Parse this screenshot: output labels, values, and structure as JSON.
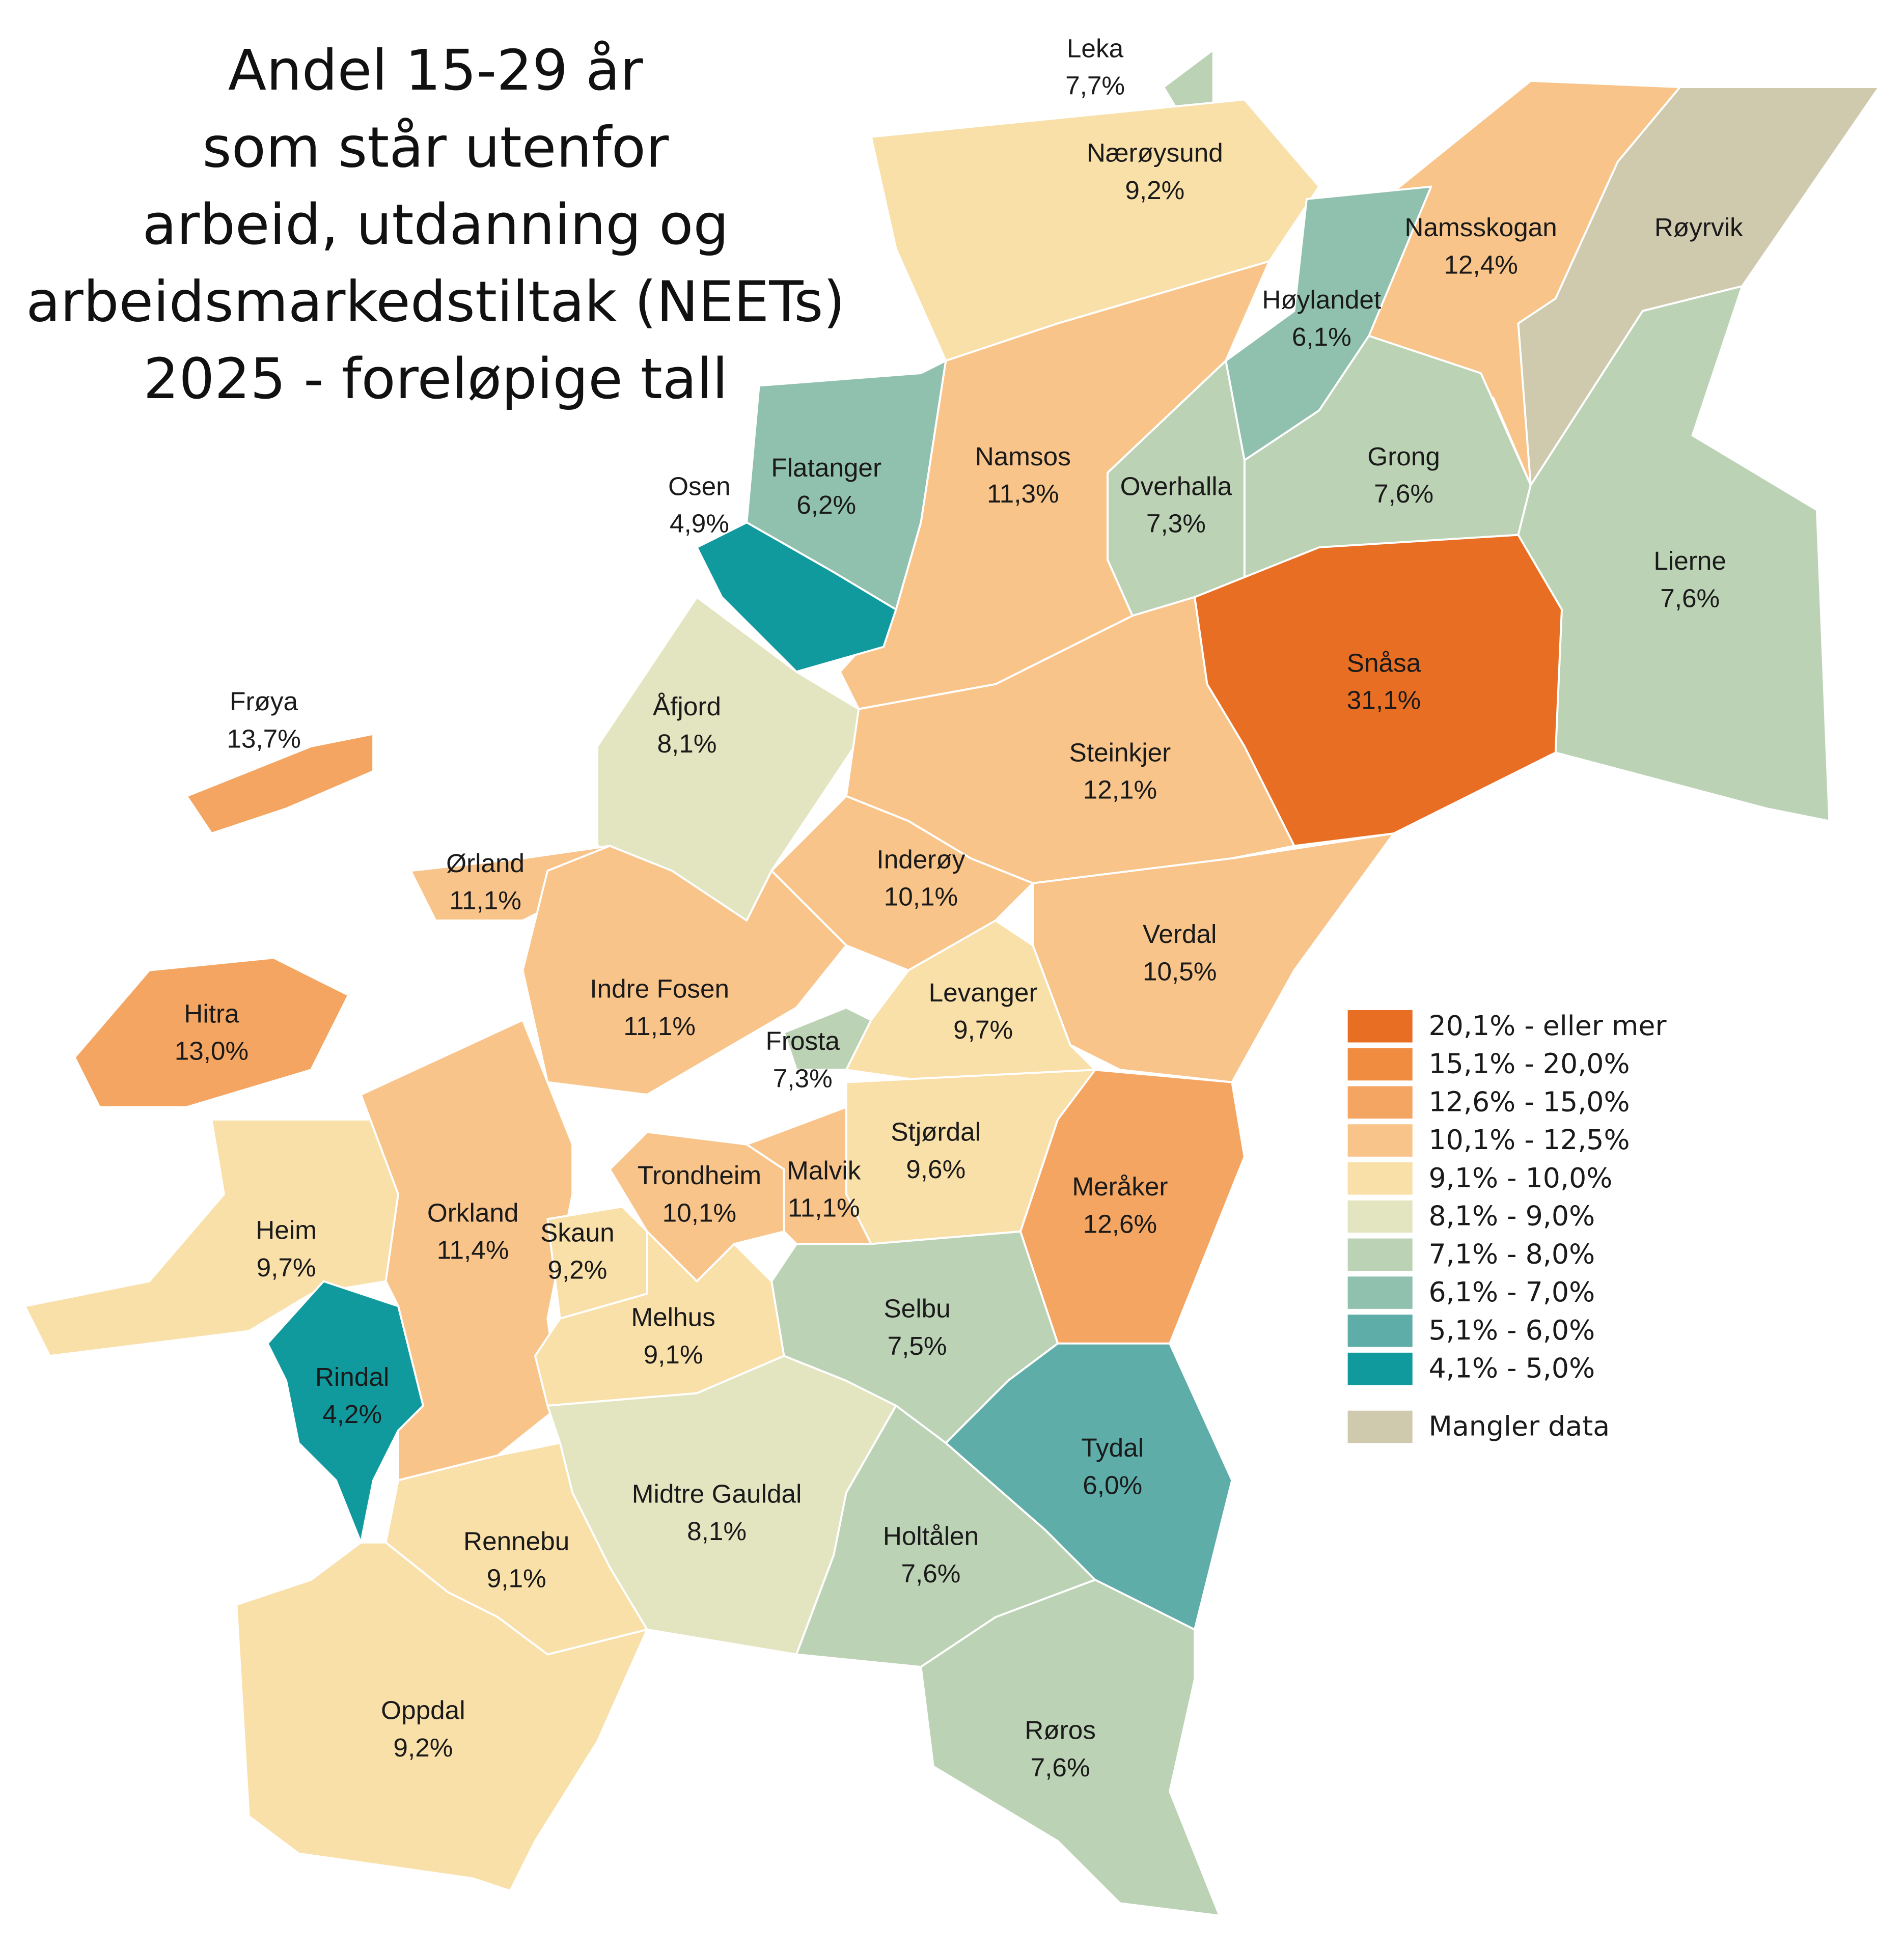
{
  "title": [
    "Andel 15-29 år",
    "som står utenfor",
    "arbeid, utdanning og",
    "arbeidsmarkedstiltak (NEETs)",
    "2025 - foreløpige tall"
  ],
  "regions": [
    {
      "name": "Leka",
      "value": "7,7%",
      "color": "#bcd2b5"
    },
    {
      "name": "Nærøysund",
      "value": "9,2%",
      "color": "#f9dfa8"
    },
    {
      "name": "Namsskogan",
      "value": "12,4%",
      "color": "#f8c48a"
    },
    {
      "name": "Røyrvik",
      "color": "#cfc9ae"
    },
    {
      "name": "Høylandet",
      "value": "6,1%",
      "color": "#90c0ae"
    },
    {
      "name": "Grong",
      "value": "7,6%",
      "color": "#bcd2b5"
    },
    {
      "name": "Lierne",
      "value": "7,6%",
      "color": "#bcd2b5"
    },
    {
      "name": "Overhalla",
      "value": "7,3%",
      "color": "#bcd2b5"
    },
    {
      "name": "Namsos",
      "value": "11,3%",
      "color": "#f8c48a"
    },
    {
      "name": "Flatanger",
      "value": "6,2%",
      "color": "#90c0ae"
    },
    {
      "name": "Osen",
      "value": "4,9%",
      "color": "#119a9e"
    },
    {
      "name": "Snåsa",
      "value": "31,1%",
      "color": "#e86e23"
    },
    {
      "name": "Åfjord",
      "value": "8,1%",
      "color": "#e3e5c0"
    },
    {
      "name": "Steinkjer",
      "value": "12,1%",
      "color": "#f8c48a"
    },
    {
      "name": "Frøya",
      "value": "13,7%",
      "color": "#f4a562"
    },
    {
      "name": "Ørland",
      "value": "11,1%",
      "color": "#f8c48a"
    },
    {
      "name": "Inderøy",
      "value": "10,1%",
      "color": "#f8c48a"
    },
    {
      "name": "Verdal",
      "value": "10,5%",
      "color": "#f8c48a"
    },
    {
      "name": "Hitra",
      "value": "13,0%",
      "color": "#f4a562"
    },
    {
      "name": "Indre Fosen",
      "value": "11,1%",
      "color": "#f8c48a"
    },
    {
      "name": "Levanger",
      "value": "9,7%",
      "color": "#f9dfa8"
    },
    {
      "name": "Frosta",
      "value": "7,3%",
      "color": "#bcd2b5"
    },
    {
      "name": "Stjørdal",
      "value": "9,6%",
      "color": "#f9dfa8"
    },
    {
      "name": "Meråker",
      "value": "12,6%",
      "color": "#f4a562"
    },
    {
      "name": "Trondheim",
      "value": "10,1%",
      "color": "#f8c48a"
    },
    {
      "name": "Malvik",
      "value": "11,1%",
      "color": "#f8c48a"
    },
    {
      "name": "Heim",
      "value": "9,7%",
      "color": "#f9dfa8"
    },
    {
      "name": "Orkland",
      "value": "11,4%",
      "color": "#f8c48a"
    },
    {
      "name": "Skaun",
      "value": "9,2%",
      "color": "#f9dfa8"
    },
    {
      "name": "Melhus",
      "value": "9,1%",
      "color": "#f9dfa8"
    },
    {
      "name": "Selbu",
      "value": "7,5%",
      "color": "#bcd2b5"
    },
    {
      "name": "Rindal",
      "value": "4,2%",
      "color": "#119a9e"
    },
    {
      "name": "Tydal",
      "value": "6,0%",
      "color": "#5fada9"
    },
    {
      "name": "Midtre Gauldal",
      "value": "8,1%",
      "color": "#e3e5c0"
    },
    {
      "name": "Holtålen",
      "value": "7,6%",
      "color": "#bcd2b5"
    },
    {
      "name": "Rennebu",
      "value": "9,1%",
      "color": "#f9dfa8"
    },
    {
      "name": "Oppdal",
      "value": "9,2%",
      "color": "#f9dfa8"
    },
    {
      "name": "Røros",
      "value": "7,6%",
      "color": "#bcd2b5"
    }
  ],
  "legend": [
    {
      "label": "20,1% - eller mer",
      "color": "#e86e23"
    },
    {
      "label": "15,1% - 20,0%",
      "color": "#f08c3f"
    },
    {
      "label": "12,6% - 15,0%",
      "color": "#f4a562"
    },
    {
      "label": "10,1% - 12,5%",
      "color": "#f8c48a"
    },
    {
      "label": "9,1% - 10,0%",
      "color": "#f9dfa8"
    },
    {
      "label": "8,1% - 9,0%",
      "color": "#e3e5c0"
    },
    {
      "label": "7,1% - 8,0%",
      "color": "#bcd2b5"
    },
    {
      "label": "6,1% - 7,0%",
      "color": "#90c0ae"
    },
    {
      "label": "5,1% - 6,0%",
      "color": "#5fada9"
    },
    {
      "label": "4,1% - 5,0%",
      "color": "#119a9e"
    },
    {
      "label": "Mangler data",
      "color": "#cfc9ae"
    }
  ]
}
